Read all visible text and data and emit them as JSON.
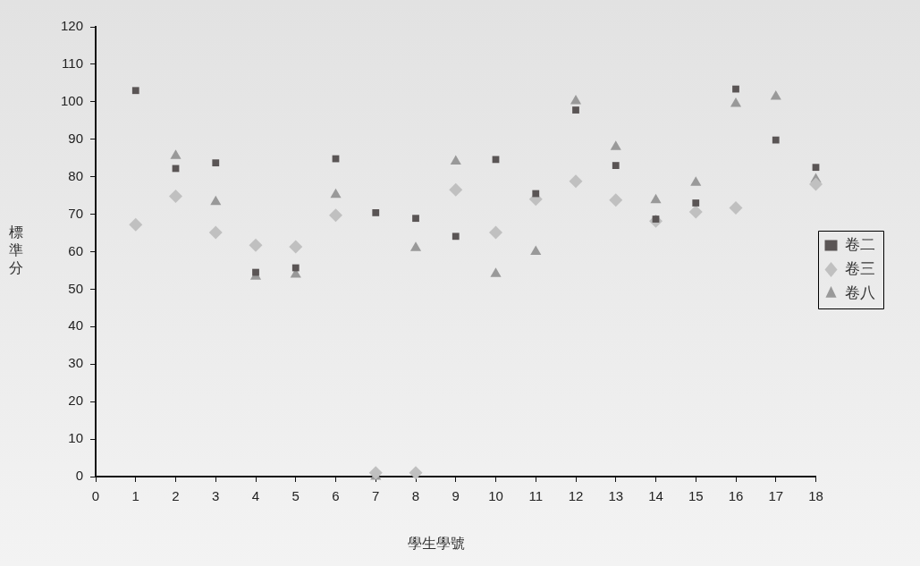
{
  "chart_data": {
    "type": "scatter",
    "xlabel": "學生學號",
    "ylabel": "標準分",
    "x": [
      1,
      2,
      3,
      4,
      5,
      6,
      7,
      8,
      9,
      10,
      11,
      12,
      13,
      14,
      15,
      16,
      17,
      18
    ],
    "xlim": [
      0,
      18
    ],
    "xticks": [
      0,
      1,
      2,
      3,
      4,
      5,
      6,
      7,
      8,
      9,
      10,
      11,
      12,
      13,
      14,
      15,
      16,
      17,
      18
    ],
    "ylim": [
      0,
      120
    ],
    "yticks": [
      0,
      10,
      20,
      30,
      40,
      50,
      60,
      70,
      80,
      90,
      100,
      110,
      120
    ],
    "legend": "right",
    "series": [
      {
        "name": "卷二",
        "color": "#5a5555",
        "marker": "square",
        "values": [
          103,
          82.2,
          83.7,
          54.5,
          55.7,
          84.8,
          70.4,
          68.9,
          64.1,
          84.6,
          75.5,
          97.8,
          83,
          68.7,
          73,
          103.4,
          89.8,
          82.5
        ]
      },
      {
        "name": "卷三",
        "color": "#c0c0c0",
        "marker": "diamond",
        "values": [
          67.2,
          74.8,
          65.1,
          61.7,
          61.3,
          69.7,
          1,
          1,
          76.5,
          65.1,
          74,
          78.8,
          73.8,
          68.2,
          70.6,
          71.7,
          null,
          78
        ]
      },
      {
        "name": "卷八",
        "color": "#999999",
        "marker": "triangle",
        "values": [
          null,
          85.6,
          73.3,
          53.4,
          53.9,
          75.2,
          0,
          61,
          84.1,
          54.1,
          60,
          100.2,
          88,
          73.8,
          78.4,
          99.5,
          101.4,
          79.3
        ]
      }
    ]
  }
}
